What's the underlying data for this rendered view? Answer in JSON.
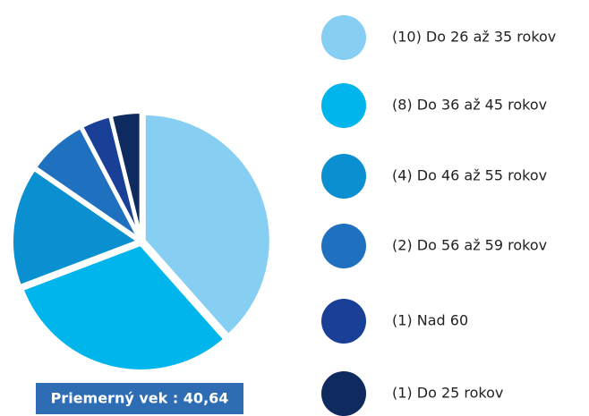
{
  "chart_data": {
    "type": "pie",
    "categories": [
      "(10) Do 26 až 35 rokov",
      "(8) Do 36 až 45 rokov",
      "(4) Do 46 až 55 rokov",
      "(2) Do 56 až 59 rokov",
      "(1) Nad 60",
      "(1) Do 25 rokov"
    ],
    "values": [
      10,
      8,
      4,
      2,
      1,
      1
    ],
    "colors": [
      "#87cef3",
      "#00b4ec",
      "#0a8fd0",
      "#1f70bf",
      "#1a3f96",
      "#0f2a5e"
    ],
    "annotation": "Priemerný vek : 40,64"
  }
}
